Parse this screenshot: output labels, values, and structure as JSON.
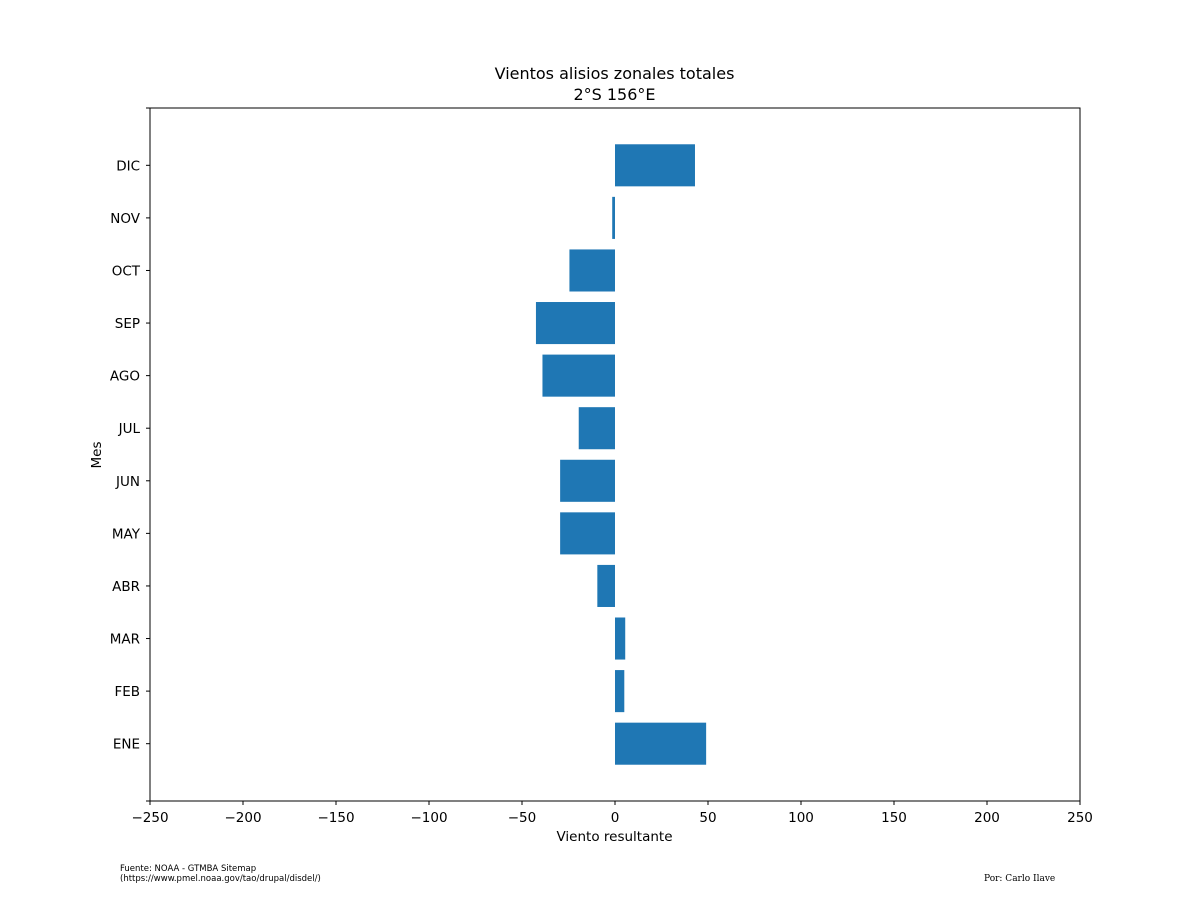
{
  "chart_data": {
    "type": "bar",
    "orientation": "horizontal",
    "title": "Vientos alisios zonales totales",
    "subtitle": "2°S 156°E",
    "xlabel": "Viento resultante",
    "ylabel": "Mes",
    "xlim": [
      -250,
      250
    ],
    "xticks": [
      "−250",
      "−200",
      "−150",
      "−100",
      "−50",
      "0",
      "50",
      "100",
      "150",
      "200",
      "250"
    ],
    "categories": [
      "ENE",
      "FEB",
      "MAR",
      "ABR",
      "MAY",
      "JUN",
      "JUL",
      "AGO",
      "SEP",
      "OCT",
      "NOV",
      "DIC"
    ],
    "values": [
      49,
      5,
      5.5,
      -9.5,
      -29.5,
      -29.5,
      -19.5,
      -39,
      -42.5,
      -24.5,
      -1.5,
      43
    ],
    "color": "#1f77b4",
    "grid": false
  },
  "footer": {
    "source_line1": "Fuente: NOAA - GTMBA Sitemap",
    "source_line2": "(https://www.pmel.noaa.gov/tao/drupal/disdel/)",
    "author": "Por: Carlo Ilave"
  }
}
